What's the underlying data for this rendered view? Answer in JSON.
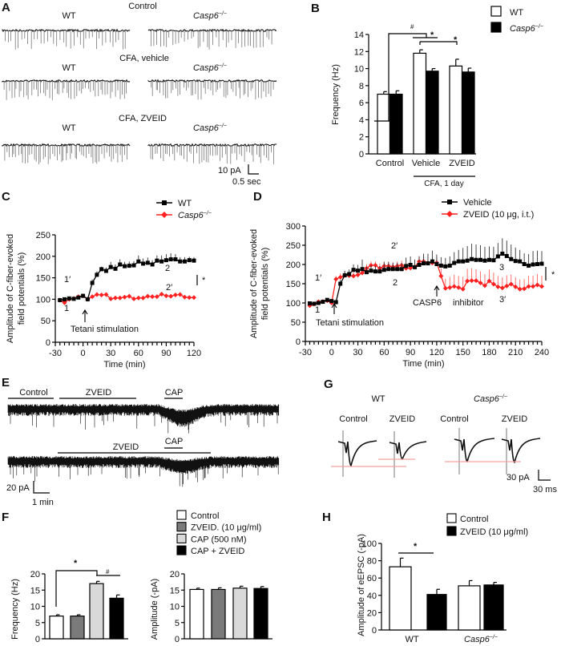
{
  "panels": {
    "A": "A",
    "B": "B",
    "C": "C",
    "D": "D",
    "E": "E",
    "F": "F",
    "G": "G",
    "H": "H"
  },
  "ko_name": "Casp6",
  "ko_sup": "−/−",
  "wt_name": "WT",
  "panel_a": {
    "row1": "Control",
    "row2": "CFA, vehicle",
    "row3": "CFA, ZVEID",
    "scale_y": "10 pA",
    "scale_x": "0.5 sec"
  },
  "panel_e": {
    "control": "Control",
    "zveid": "ZVEID",
    "cap": "CAP",
    "scale_y": "20 pA",
    "scale_x": "1 min"
  },
  "panel_g": {
    "control": "Control",
    "zveid": "ZVEID",
    "scale_y": "30 pA",
    "scale_x": "30 ms",
    "peak_line_color": "#f4a0a0"
  },
  "colors": {
    "red": "#ff2020",
    "black": "#000000",
    "dark_gray": "#7a7a7a",
    "light_gray": "#d9d9d9",
    "white": "#ffffff"
  },
  "chart_data": [
    {
      "type": "bar",
      "panel": "B",
      "ylabel": "Frequency (Hz)",
      "ylim": [
        0,
        14
      ],
      "yticks": [
        0,
        2,
        4,
        6,
        8,
        10,
        12,
        14
      ],
      "categories": [
        "Control",
        "Vehicle",
        "ZVEID"
      ],
      "group_label": "CFA, 1 day",
      "series": [
        {
          "name": "WT",
          "color": "#ffffff",
          "values": [
            7.0,
            11.8,
            10.3
          ],
          "sem": [
            0.3,
            0.4,
            0.8
          ]
        },
        {
          "name": "Casp6−/−",
          "color": "#000000",
          "values": [
            7.0,
            9.7,
            9.6
          ],
          "sem": [
            0.4,
            0.3,
            0.45
          ]
        }
      ],
      "annotations": [
        "#",
        "*",
        "*"
      ],
      "legend": "top-right"
    },
    {
      "type": "line",
      "panel": "C",
      "ylabel": [
        "Amplitude of C-fiber-evoked",
        "field potentials (%)"
      ],
      "xlabel": "Time (min)",
      "xlim": [
        -30,
        120
      ],
      "ylim": [
        0,
        250
      ],
      "xticks": [
        -30,
        0,
        30,
        60,
        90,
        120
      ],
      "yticks": [
        0,
        50,
        100,
        150,
        200,
        250
      ],
      "x": [
        -25,
        -20,
        -15,
        -10,
        -5,
        0,
        5,
        10,
        15,
        20,
        25,
        30,
        35,
        40,
        45,
        50,
        55,
        60,
        65,
        70,
        75,
        80,
        85,
        90,
        95,
        100,
        105,
        110,
        115,
        120
      ],
      "series": [
        {
          "name": "WT",
          "color": "#000000",
          "marker": "square",
          "values": [
            98,
            100,
            102,
            101,
            104,
            108,
            100,
            138,
            157,
            170,
            166,
            175,
            171,
            181,
            177,
            178,
            179,
            188,
            183,
            185,
            181,
            190,
            188,
            191,
            193,
            193,
            188,
            188,
            191,
            190
          ],
          "sem": [
            2,
            2,
            2,
            2,
            3,
            3,
            2,
            8,
            8,
            6,
            8,
            12,
            10,
            12,
            10,
            10,
            10,
            14,
            12,
            12,
            10,
            12,
            14,
            14,
            14,
            12,
            10,
            10,
            8,
            8
          ]
        },
        {
          "name": "Casp6−/−",
          "color": "#ff2020",
          "marker": "diamond",
          "values": [
            98,
            92,
            100,
            102,
            106,
            108,
            100,
            106,
            111,
            110,
            111,
            101,
            103,
            103,
            105,
            107,
            101,
            103,
            103,
            107,
            106,
            106,
            112,
            108,
            107,
            110,
            111,
            105,
            104,
            104
          ],
          "sem": [
            2,
            4,
            3,
            3,
            3,
            4,
            2,
            5,
            5,
            5,
            4,
            5,
            4,
            4,
            5,
            4,
            5,
            4,
            4,
            5,
            5,
            5,
            4,
            5,
            5,
            5,
            5,
            5,
            4,
            4
          ]
        }
      ],
      "annotations": {
        "n1p": "1′",
        "n1": "1",
        "n2": "2",
        "n2p": "2′",
        "stim": "Tetani stimulation",
        "sig": "*"
      },
      "legend": "top-right"
    },
    {
      "type": "line",
      "panel": "D",
      "ylabel": [
        "Amplitude of C-fiber-evoked",
        "field potentials (%)"
      ],
      "xlabel": "Time (min)",
      "xlim": [
        -30,
        240
      ],
      "ylim": [
        0,
        300
      ],
      "xticks": [
        -30,
        0,
        30,
        60,
        90,
        120,
        150,
        180,
        210,
        240
      ],
      "yticks": [
        0,
        50,
        100,
        150,
        200,
        250,
        300
      ],
      "x": [
        -25,
        -20,
        -15,
        -10,
        -5,
        0,
        5,
        10,
        15,
        20,
        25,
        30,
        35,
        40,
        45,
        50,
        55,
        60,
        65,
        70,
        75,
        80,
        85,
        90,
        95,
        100,
        105,
        110,
        115,
        120,
        125,
        130,
        135,
        140,
        145,
        150,
        155,
        160,
        165,
        170,
        175,
        180,
        185,
        190,
        195,
        200,
        205,
        210,
        215,
        220,
        225,
        230,
        235,
        240
      ],
      "series": [
        {
          "name": "Vehicle",
          "color": "#000000",
          "marker": "square",
          "values": [
            99,
            98,
            100,
            103,
            108,
            105,
            102,
            150,
            172,
            175,
            186,
            184,
            188,
            180,
            184,
            182,
            182,
            186,
            188,
            188,
            188,
            188,
            196,
            199,
            193,
            199,
            203,
            203,
            208,
            201,
            197,
            195,
            197,
            204,
            208,
            208,
            210,
            214,
            212,
            212,
            210,
            212,
            211,
            221,
            228,
            222,
            214,
            209,
            208,
            201,
            197,
            200,
            201,
            202
          ],
          "sem": [
            3,
            3,
            3,
            3,
            3,
            3,
            3,
            10,
            12,
            12,
            14,
            15,
            25,
            14,
            14,
            14,
            14,
            20,
            18,
            16,
            16,
            16,
            22,
            22,
            20,
            22,
            25,
            25,
            28,
            25,
            22,
            22,
            24,
            28,
            30,
            35,
            38,
            40,
            40,
            38,
            36,
            35,
            35,
            35,
            40,
            40,
            38,
            35,
            30,
            28,
            30,
            35,
            35,
            33
          ]
        },
        {
          "name": "ZVEID (10 μg, i.t.)",
          "color": "#ff2020",
          "marker": "diamond",
          "values": [
            93,
            97,
            103,
            104,
            106,
            100,
            162,
            167,
            172,
            171,
            170,
            173,
            178,
            190,
            198,
            198,
            190,
            196,
            196,
            194,
            196,
            198,
            190,
            191,
            193,
            208,
            208,
            204,
            204,
            205,
            170,
            138,
            140,
            143,
            140,
            136,
            157,
            158,
            158,
            152,
            145,
            157,
            149,
            142,
            139,
            144,
            149,
            142,
            136,
            137,
            143,
            143,
            147,
            143
          ],
          "sem": [
            3,
            3,
            3,
            3,
            3,
            3,
            8,
            10,
            10,
            10,
            10,
            10,
            10,
            10,
            10,
            10,
            12,
            12,
            12,
            12,
            12,
            12,
            12,
            14,
            14,
            14,
            14,
            14,
            14,
            15,
            20,
            25,
            28,
            30,
            30,
            32,
            32,
            32,
            30,
            30,
            30,
            30,
            30,
            28,
            28,
            28,
            25,
            25,
            25,
            25,
            28,
            28,
            28,
            28
          ]
        }
      ],
      "annotations": {
        "n1p": "1′",
        "n1": "1",
        "n2": "2",
        "n2p": "2′",
        "n3": "3",
        "n3p": "3′",
        "stim": "Tetani stimulation",
        "inhib1": "CASP6",
        "inhib2": "inhibitor",
        "sig": "*"
      },
      "legend": "top-right"
    },
    {
      "type": "bar",
      "panel": "F-frequency",
      "ylabel": "Frequency (Hz)",
      "ylim": [
        0,
        20
      ],
      "yticks": [
        0,
        5,
        10,
        15,
        20
      ],
      "categories": [
        "Control",
        "ZVEID. (10 μg/ml)",
        "CAP (500 nM)",
        "CAP + ZVEID"
      ],
      "colors": [
        "#ffffff",
        "#7a7a7a",
        "#d9d9d9",
        "#000000"
      ],
      "values": [
        7.0,
        7.0,
        17.0,
        12.5
      ],
      "sem": [
        0.4,
        0.4,
        0.7,
        1.0
      ],
      "annotations": [
        "*",
        "#"
      ]
    },
    {
      "type": "bar",
      "panel": "F-amplitude",
      "ylabel": "Amplitude (-pA)",
      "ylim": [
        0,
        20
      ],
      "yticks": [
        0,
        5,
        10,
        15,
        20
      ],
      "categories": [
        "Control",
        "ZVEID. (10 μg/ml)",
        "CAP (500 nM)",
        "CAP + ZVEID"
      ],
      "colors": [
        "#ffffff",
        "#7a7a7a",
        "#d9d9d9",
        "#000000"
      ],
      "values": [
        15.2,
        15.2,
        15.6,
        15.5
      ],
      "sem": [
        0.4,
        0.5,
        0.6,
        0.6
      ]
    },
    {
      "type": "bar",
      "panel": "H",
      "ylabel": "Amplitude of eEPSC (-pA)",
      "ylim": [
        0,
        100
      ],
      "yticks": [
        0,
        20,
        40,
        60,
        80,
        100
      ],
      "categories": [
        "WT",
        "Casp6−/−"
      ],
      "series": [
        {
          "name": "Control",
          "color": "#ffffff",
          "values": [
            73,
            51
          ],
          "sem": [
            10,
            6
          ]
        },
        {
          "name": "ZVEID (10 μg/ml)",
          "color": "#000000",
          "values": [
            41,
            52
          ],
          "sem": [
            6,
            3
          ]
        }
      ],
      "annotations": [
        "*"
      ],
      "legend": "top"
    }
  ]
}
